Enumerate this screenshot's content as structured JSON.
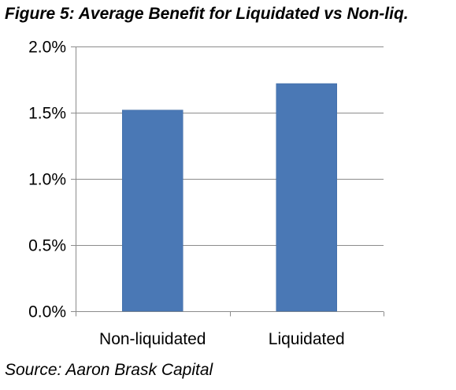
{
  "figure": {
    "title": "Figure 5: Average Benefit for Liquidated vs Non-liq.",
    "source": "Source: Aaron Brask Capital"
  },
  "chart_data": {
    "type": "bar",
    "categories": [
      "Non-liquidated",
      "Liquidated"
    ],
    "values": [
      1.52,
      1.72
    ],
    "value_unit": "%",
    "ylim": [
      0.0,
      2.0
    ],
    "yticks": [
      0.0,
      0.5,
      1.0,
      1.5,
      2.0
    ],
    "ytick_labels": [
      "0.0%",
      "0.5%",
      "1.0%",
      "1.5%",
      "2.0%"
    ],
    "grid": true,
    "legend": "none",
    "colors": {
      "bar": "#4a78b5",
      "bar_edge": "#3f6aa3",
      "gridline": "#8c8c8c",
      "axis": "#8c8c8c"
    }
  }
}
